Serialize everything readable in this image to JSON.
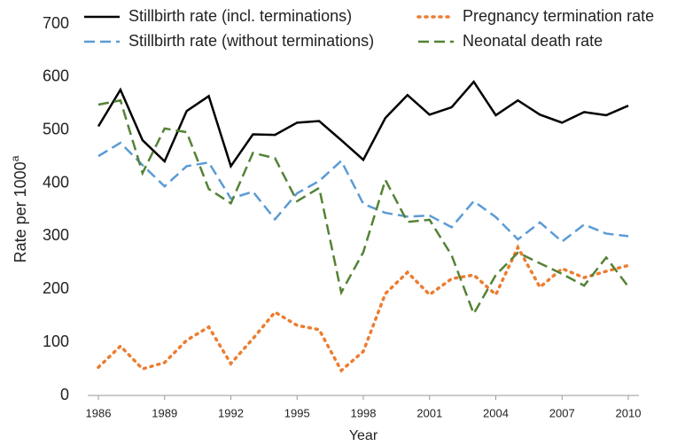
{
  "chart_data": {
    "type": "line",
    "x_label": "Year",
    "y_label": {
      "text": "Rate per 1000",
      "superscript": "a"
    },
    "x": [
      1986,
      1987,
      1988,
      1989,
      1990,
      1991,
      1992,
      1993,
      1994,
      1995,
      1996,
      1997,
      1998,
      1999,
      2000,
      2001,
      2002,
      2003,
      2004,
      2005,
      2006,
      2007,
      2008,
      2009,
      2010
    ],
    "xlim": [
      1986,
      2010
    ],
    "xticks": [
      1986,
      1989,
      1992,
      1995,
      1998,
      2001,
      2004,
      2007,
      2010
    ],
    "ylim": [
      0,
      700
    ],
    "yticks": [
      0,
      100,
      200,
      300,
      400,
      500,
      600,
      700
    ],
    "grid": false,
    "series": [
      {
        "name": "Stillbirth rate (incl. terminations)",
        "color": "#000000",
        "dash": "solid",
        "values": [
          507,
          576,
          481,
          441,
          536,
          564,
          432,
          492,
          491,
          514,
          517,
          481,
          444,
          523,
          566,
          529,
          543,
          591,
          528,
          556,
          529,
          514,
          534,
          528,
          546
        ]
      },
      {
        "name": "Pregnancy termination rate",
        "color": "#ed7d31",
        "dash": "dotted",
        "values": [
          53,
          93,
          50,
          62,
          104,
          129,
          60,
          107,
          157,
          132,
          124,
          47,
          83,
          192,
          232,
          190,
          220,
          227,
          190,
          279,
          204,
          239,
          222,
          234,
          245
        ]
      },
      {
        "name": "Stillbirth rate (without terminations)",
        "color": "#5b9bd5",
        "dash": "dashed",
        "values": [
          451,
          476,
          434,
          394,
          432,
          439,
          371,
          384,
          332,
          381,
          404,
          442,
          361,
          344,
          337,
          339,
          317,
          366,
          336,
          294,
          326,
          290,
          322,
          305,
          300
        ]
      },
      {
        "name": "Neonatal death rate",
        "color": "#548235",
        "dash": "dashed",
        "values": [
          548,
          556,
          419,
          503,
          496,
          389,
          362,
          457,
          447,
          366,
          391,
          194,
          270,
          406,
          327,
          331,
          264,
          154,
          227,
          269,
          249,
          229,
          207,
          260,
          205
        ]
      }
    ]
  }
}
